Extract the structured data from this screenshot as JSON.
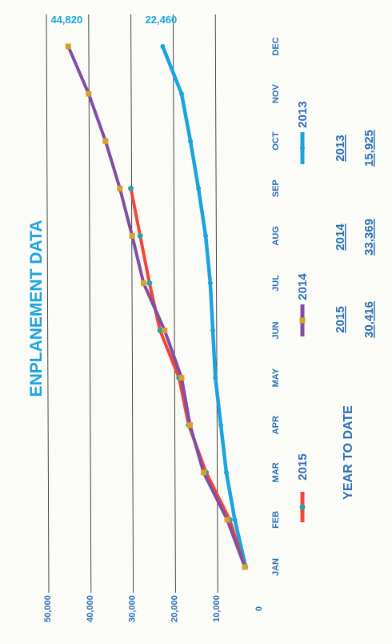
{
  "chart_data": {
    "type": "line",
    "title": "ENPLANEMENT DATA",
    "categories": [
      "JAN",
      "FEB",
      "MAR",
      "APR",
      "MAY",
      "JUN",
      "JUL",
      "AUG",
      "SEP",
      "OCT",
      "NOV",
      "DEC"
    ],
    "y_ticks": [
      "0",
      "10,000",
      "20,000",
      "30,000",
      "40,000",
      "50,000"
    ],
    "ylim": [
      0,
      50000
    ],
    "grid": true,
    "series": [
      {
        "name": "2015",
        "color": "#f0453a",
        "marker_color": "#2fa39a",
        "values": [
          3000,
          6600,
          12200,
          16300,
          18600,
          23100,
          25600,
          27800,
          30000,
          null,
          null,
          null
        ]
      },
      {
        "name": "2014",
        "color": "#7f4fa3",
        "marker_color": "#d8a12e",
        "values": [
          3000,
          7200,
          12800,
          16000,
          18000,
          22000,
          27000,
          29700,
          32600,
          36000,
          40000,
          44820
        ]
      },
      {
        "name": "2013",
        "color": "#1ba3de",
        "marker_color": "#1ba3de",
        "values": [
          2800,
          5400,
          7400,
          8700,
          10000,
          10600,
          11200,
          12300,
          14000,
          15900,
          18000,
          22460
        ]
      }
    ],
    "annotations": [
      {
        "text": "44,820",
        "series": "2014",
        "month": "DEC"
      },
      {
        "text": "22,460",
        "series": "2013",
        "month": "DEC"
      }
    ]
  },
  "legend": {
    "items": [
      {
        "label": "2015",
        "color": "#f0453a",
        "marker_color": "#2fa39a"
      },
      {
        "label": "2014",
        "color": "#7f4fa3",
        "marker_color": "#d8a12e"
      },
      {
        "label": "2013",
        "color": "#1ba3de",
        "marker_color": "#1ba3de"
      }
    ]
  },
  "ytd": {
    "label": "YEAR TO DATE",
    "columns": [
      {
        "year": "2015",
        "value": "30,416"
      },
      {
        "year": "2014",
        "value": "33,369"
      },
      {
        "year": "2013",
        "value": "15,925"
      }
    ]
  },
  "colors": {
    "title": "#1ba3de",
    "text": "#2a6fb5",
    "grid": "#333333"
  }
}
